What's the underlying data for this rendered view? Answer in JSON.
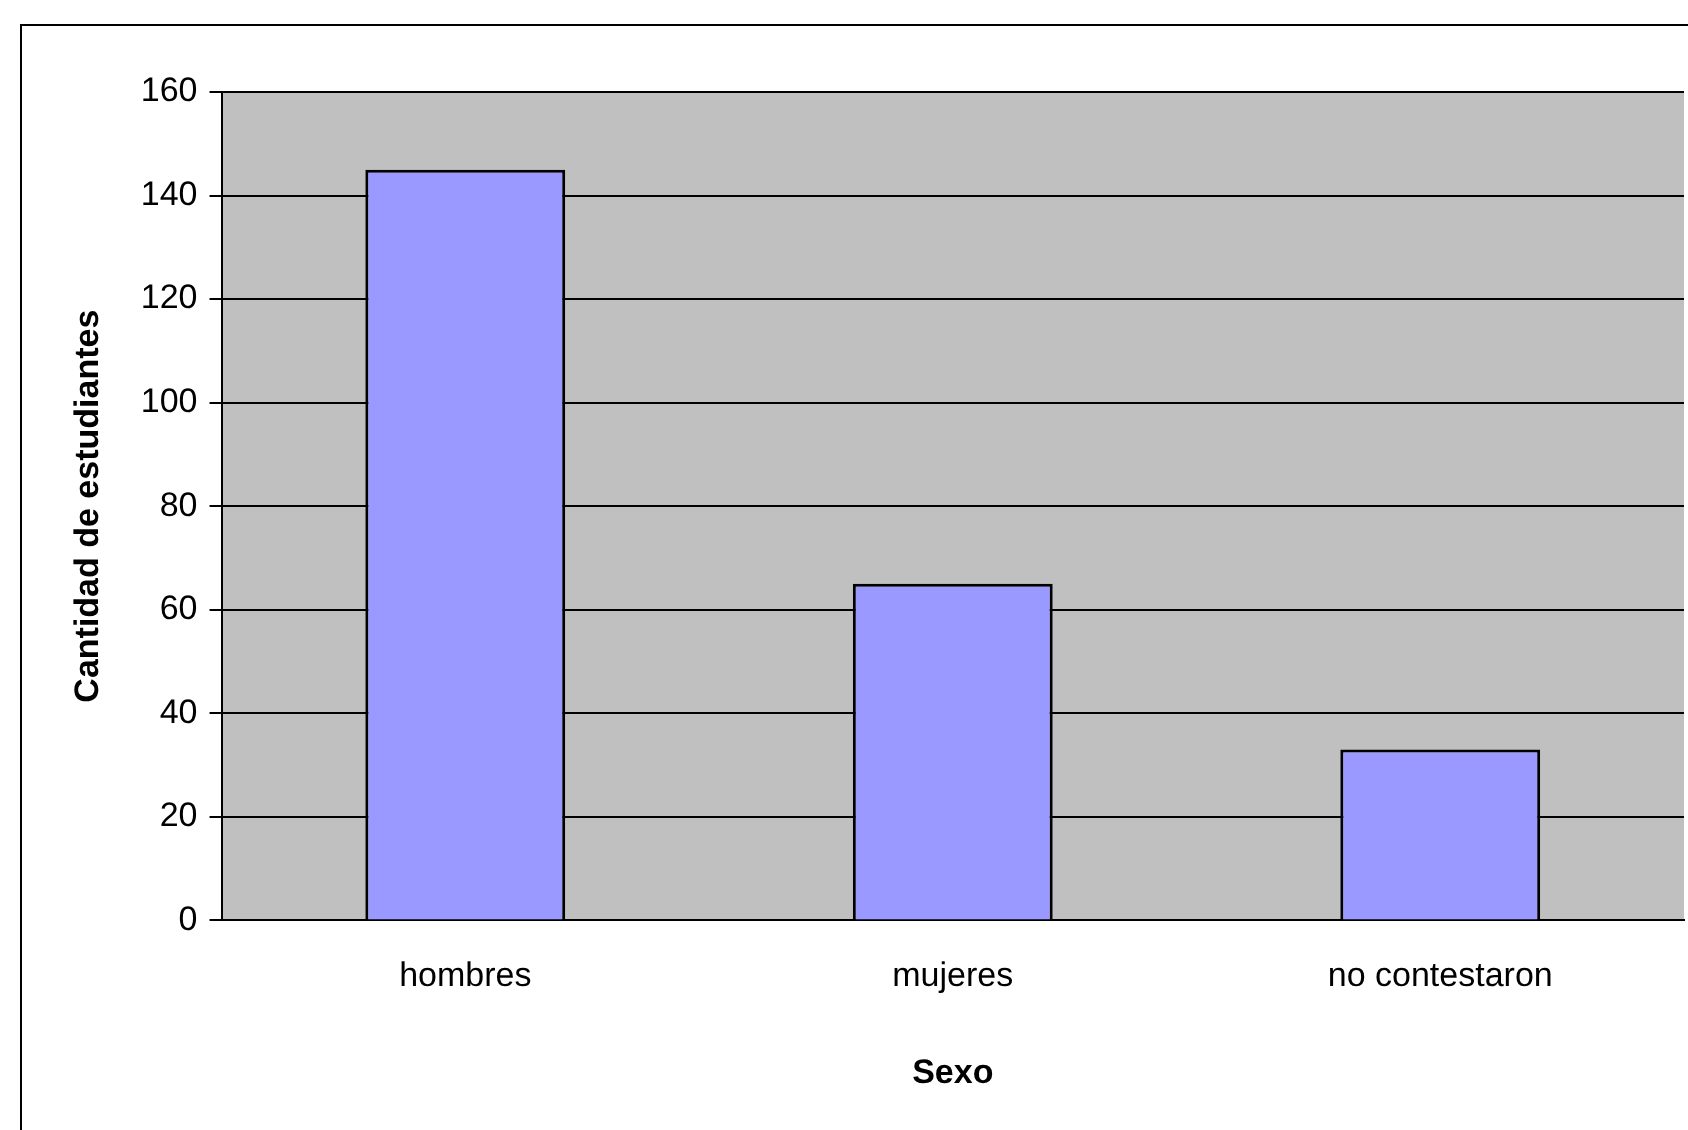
{
  "chart_data": {
    "type": "bar",
    "xlabel": "Sexo",
    "ylabel": "Cantidad de estudiantes",
    "categories": [
      "hombres",
      "mujeres",
      "no contestaron"
    ],
    "values": [
      145,
      65,
      33
    ],
    "color": "#9999ff",
    "ylim": [
      0,
      160
    ],
    "yticks": [
      0,
      20,
      40,
      60,
      80,
      100,
      120,
      140,
      160
    ],
    "grid": "y",
    "legend": false
  }
}
